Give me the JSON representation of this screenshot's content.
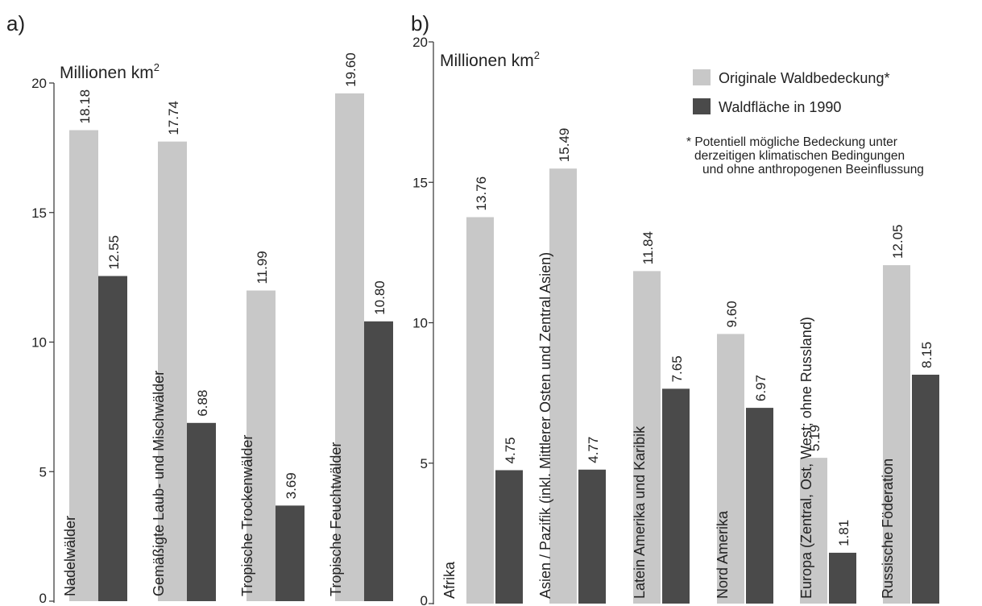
{
  "chart_data": [
    {
      "type": "bar",
      "panel_label": "a)",
      "unit_label": "Millionen km",
      "unit_superscript": "2",
      "ylim": [
        0,
        20
      ],
      "yticks": [
        0,
        5,
        10,
        15,
        20
      ],
      "categories": [
        "Nadelwälder",
        "Gemäßigte Laub- und Mischwälder",
        "Tropische Trockenwälder",
        "Tropische Feuchtwälder"
      ],
      "series": [
        {
          "name": "Originale Waldbedeckung*",
          "values": [
            18.18,
            17.74,
            11.99,
            19.6
          ],
          "labels": [
            "18.18",
            "17.74",
            "11.99",
            "19.60"
          ],
          "color": "#c8c8c8"
        },
        {
          "name": "Waldfläche in 1990",
          "values": [
            12.55,
            6.88,
            3.69,
            10.8
          ],
          "labels": [
            "12.55",
            "6.88",
            "3.69",
            "10.80"
          ],
          "color": "#4a4a4a"
        }
      ],
      "grid": false
    },
    {
      "type": "bar",
      "panel_label": "b)",
      "unit_label": "Millionen km",
      "unit_superscript": "2",
      "ylim": [
        0,
        20
      ],
      "yticks": [
        0,
        5,
        10,
        15,
        20
      ],
      "categories": [
        "Afrika",
        "Asien / Pazifik (inkl. Mittlerer Osten und Zentral Asien)",
        "Latein Amerika und Karibik",
        "Nord Amerika",
        "Europa (Zentral, Ost, West; ohne Russland)",
        "Russische Föderation"
      ],
      "series": [
        {
          "name": "Originale Waldbedeckung*",
          "values": [
            13.76,
            15.49,
            11.84,
            9.6,
            5.19,
            12.05
          ],
          "labels": [
            "13.76",
            "15.49",
            "11.84",
            "9.60",
            "5.19",
            "12.05"
          ],
          "color": "#c8c8c8"
        },
        {
          "name": "Waldfläche in 1990",
          "values": [
            4.75,
            4.77,
            7.65,
            6.97,
            1.81,
            8.15
          ],
          "labels": [
            "4.75",
            "4.77",
            "7.65",
            "6.97",
            "1.81",
            "8.15"
          ],
          "color": "#4a4a4a"
        }
      ],
      "legend": {
        "placement": "top-right",
        "items": [
          {
            "label": "Originale Waldbedeckung*",
            "color": "#c8c8c8"
          },
          {
            "label": "Waldfläche in 1990",
            "color": "#4a4a4a"
          }
        ],
        "note": [
          "* Potentiell mögliche Bedeckung unter",
          "derzeitigen klimatischen Bedingungen",
          "und ohne anthropogenen Beeinflussung"
        ]
      },
      "grid": false
    }
  ]
}
